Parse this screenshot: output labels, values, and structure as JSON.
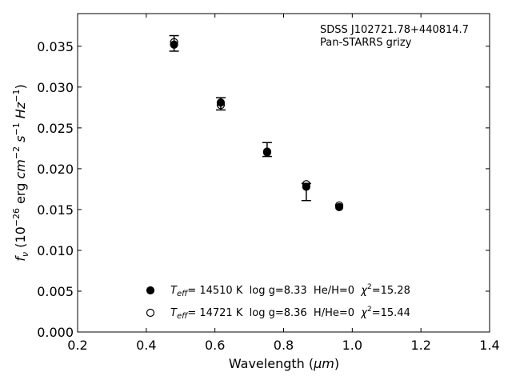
{
  "chart_data": {
    "type": "scatter",
    "annotations": [
      "SDSS J102721.78+440814.7",
      "Pan-STARRS grizy"
    ],
    "xlim": [
      0.2,
      1.4
    ],
    "ylim": [
      0.0,
      0.039
    ],
    "x_ticks": [
      0.2,
      0.4,
      0.6,
      0.8,
      1.0,
      1.2,
      1.4
    ],
    "x_tick_labels": [
      "0.2",
      "0.4",
      "0.6",
      "0.8",
      "1.0",
      "1.2",
      "1.4"
    ],
    "y_ticks": [
      0.0,
      0.005,
      0.01,
      0.015,
      0.02,
      0.025,
      0.03,
      0.035
    ],
    "y_tick_labels": [
      "0.000",
      "0.005",
      "0.010",
      "0.015",
      "0.020",
      "0.025",
      "0.030",
      "0.035"
    ],
    "xlabel": {
      "main": "Wavelength (",
      "unit": "μm",
      "close": ")"
    },
    "ylabel": {
      "f": "f",
      "nu": "ν",
      "open": " (10",
      "exp1": "−26",
      "erg": " erg ",
      "cm": "cm",
      "exp2": "−2",
      "s": " s",
      "exp3": "−1",
      "hz": " Hz",
      "exp4": "−1",
      "close": ")"
    },
    "grid": false,
    "legend_position": "lower-center",
    "observed": {
      "x": [
        0.481,
        0.617,
        0.752,
        0.866,
        0.962
      ],
      "y": [
        0.03535,
        0.02795,
        0.0221,
        0.01785,
        0.0153
      ],
      "yerr_low": [
        0.00095,
        0.00075,
        0.0006,
        0.00175,
        0.0
      ],
      "yerr_high": [
        0.00095,
        0.00075,
        0.0011,
        0.00035,
        0.0
      ]
    },
    "series": [
      {
        "marker": "filled-circle",
        "teff_symbol": "T",
        "teff_sub": "eff",
        "teff_rest": "= 14510 K  log g=8.33  He/H=0  ",
        "chi_symbol": "χ",
        "chi_sup": "2",
        "chi_rest": "=15.28",
        "x": [
          0.481,
          0.617,
          0.752,
          0.866,
          0.962
        ],
        "y": [
          0.0352,
          0.0281,
          0.0221,
          0.0178,
          0.0153
        ]
      },
      {
        "marker": "open-circle",
        "teff_symbol": "T",
        "teff_sub": "eff",
        "teff_rest": "= 14721 K  log g=8.36  H/He=0  ",
        "chi_symbol": "χ",
        "chi_sup": "2",
        "chi_rest": "=15.44",
        "x": [
          0.481,
          0.617,
          0.752,
          0.866,
          0.962
        ],
        "y": [
          0.0355,
          0.0278,
          0.022,
          0.0181,
          0.0155
        ]
      }
    ]
  }
}
